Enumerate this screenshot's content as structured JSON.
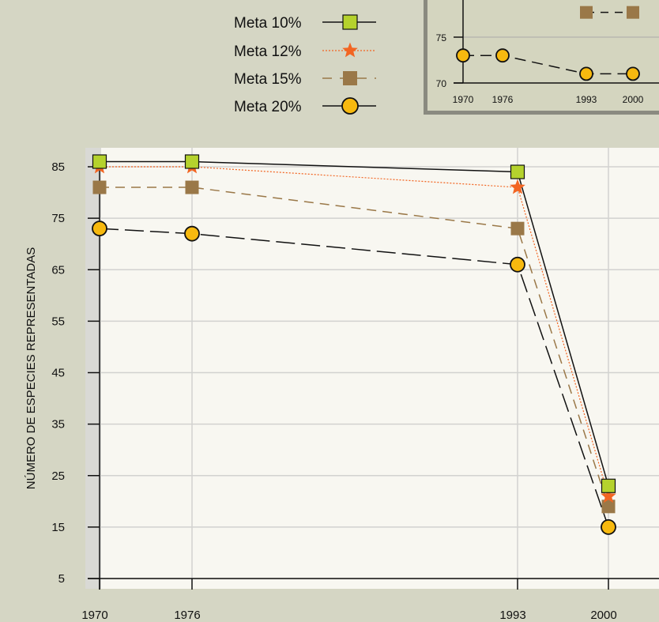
{
  "chart_data": [
    {
      "type": "line",
      "title": "",
      "xlabel": "",
      "ylabel": "NÚMERO DE ESPECIES REPRESENTADAS",
      "x": [
        "1970",
        "1976",
        "1993",
        "2000"
      ],
      "yticks": [
        5,
        15,
        25,
        35,
        45,
        55,
        65,
        75,
        85
      ],
      "ylim": [
        5,
        87
      ],
      "grid": true,
      "legend": "top-left",
      "series": [
        {
          "name": "Meta 10%",
          "values": [
            86,
            86,
            84,
            23
          ],
          "color": "#b5d22d",
          "marker": "square",
          "line": "solid"
        },
        {
          "name": "Meta 12%",
          "values": [
            85,
            85,
            81,
            21
          ],
          "color": "#f26522",
          "marker": "star",
          "line": "dotted"
        },
        {
          "name": "Meta 15%",
          "values": [
            81,
            81,
            73,
            19
          ],
          "color": "#9a7848",
          "marker": "square",
          "line": "dashed"
        },
        {
          "name": "Meta 20%",
          "values": [
            73,
            72,
            66,
            15
          ],
          "color": "#f7b90f",
          "marker": "circle",
          "line": "longdash"
        }
      ]
    },
    {
      "type": "line",
      "title": "",
      "x": [
        "1970",
        "1976",
        "1993",
        "2000"
      ],
      "yticks": [
        70,
        75
      ],
      "ylim": [
        70,
        79
      ],
      "series": [
        {
          "name": "Meta 15%",
          "values": [
            null,
            null,
            77.7,
            77.7
          ],
          "color": "#9a7848",
          "marker": "square"
        },
        {
          "name": "Meta 20%",
          "values": [
            73,
            73,
            71,
            71
          ],
          "color": "#f7b90f",
          "marker": "circle"
        }
      ]
    }
  ]
}
